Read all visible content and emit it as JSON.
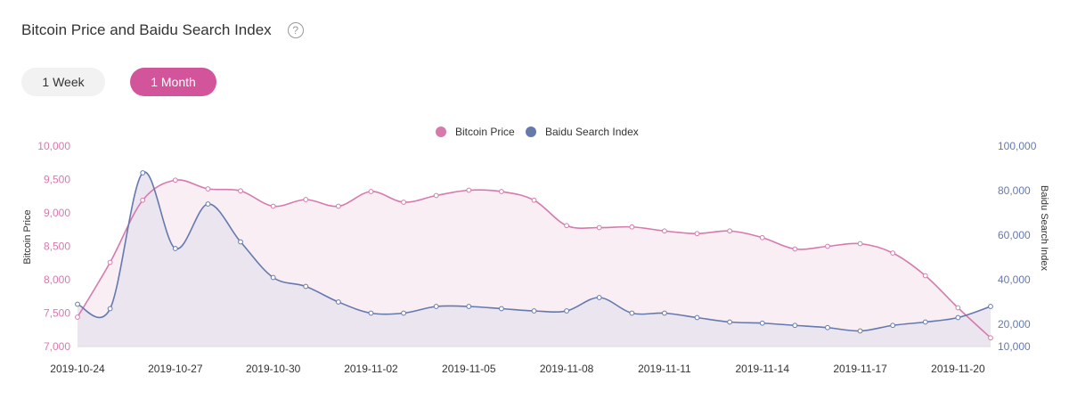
{
  "header": {
    "title": "Bitcoin Price and Baidu Search Index",
    "help_icon": "?"
  },
  "range_buttons": {
    "week": "1 Week",
    "month": "1 Month",
    "selected": "1 Month"
  },
  "colors": {
    "bitcoin": "#d67aad",
    "baidu": "#6579ad",
    "bitcoin_fill": "#faeef5",
    "baidu_fill": "#e9e3ee",
    "accent": "#d2559b"
  },
  "chart_data": {
    "type": "line",
    "title": "Bitcoin Price and Baidu Search Index",
    "xlabel": "",
    "ylabel": "Bitcoin Price",
    "y2label": "Baidu Search Index",
    "ylim": [
      7000,
      10000
    ],
    "y2lim": [
      10000,
      100000
    ],
    "yticks": [
      "7,000",
      "7,500",
      "8,000",
      "8,500",
      "9,000",
      "9,500",
      "10,000"
    ],
    "y2ticks": [
      "10,000",
      "20,000",
      "40,000",
      "60,000",
      "80,000",
      "100,000"
    ],
    "x_tick_labels": [
      "2019-10-24",
      "2019-10-27",
      "2019-10-30",
      "2019-11-02",
      "2019-11-05",
      "2019-11-08",
      "2019-11-11",
      "2019-11-14",
      "2019-11-17",
      "2019-11-20"
    ],
    "x": [
      "2019-10-24",
      "2019-10-25",
      "2019-10-26",
      "2019-10-27",
      "2019-10-28",
      "2019-10-29",
      "2019-10-30",
      "2019-10-31",
      "2019-11-01",
      "2019-11-02",
      "2019-11-03",
      "2019-11-04",
      "2019-11-05",
      "2019-11-06",
      "2019-11-07",
      "2019-11-08",
      "2019-11-09",
      "2019-11-10",
      "2019-11-11",
      "2019-11-12",
      "2019-11-13",
      "2019-11-14",
      "2019-11-15",
      "2019-11-16",
      "2019-11-17",
      "2019-11-18",
      "2019-11-19",
      "2019-11-20",
      "2019-11-21"
    ],
    "legend_position": "top",
    "series": [
      {
        "name": "Bitcoin Price",
        "axis": "left",
        "values": [
          7440,
          8260,
          9190,
          9490,
          9360,
          9330,
          9100,
          9200,
          9100,
          9320,
          9160,
          9260,
          9340,
          9320,
          9190,
          8810,
          8780,
          8790,
          8730,
          8690,
          8730,
          8630,
          8460,
          8500,
          8540,
          8400,
          8060,
          7580,
          7130
        ]
      },
      {
        "name": "Baidu Search Index",
        "axis": "right",
        "values": [
          29000,
          27000,
          88000,
          54000,
          74000,
          57000,
          41000,
          37000,
          30000,
          25000,
          25000,
          28000,
          28000,
          27000,
          26000,
          26000,
          32000,
          25000,
          25000,
          23000,
          21000,
          20500,
          19500,
          18500,
          17000,
          19500,
          21000,
          23000,
          28000
        ]
      }
    ]
  }
}
